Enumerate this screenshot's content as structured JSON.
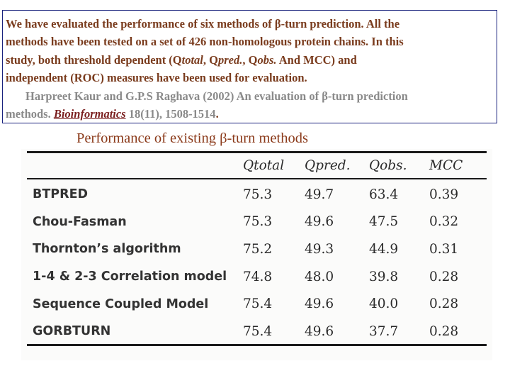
{
  "summary": {
    "line1": "We have evaluated the performance of six methods of β-turn prediction. All the",
    "line2": "methods have been tested on a set of 426 non-homologous protein chains. In this",
    "line3_a": "study, both threshold dependent (Q",
    "line3_b": "total",
    "line3_c": ", Q",
    "line3_d": "pred.",
    "line3_e": ", Q",
    "line3_f": "obs.",
    "line3_g": " And MCC) and",
    "line4": "independent (ROC) measures have been used for evaluation."
  },
  "citation": {
    "line1": "Harpreet Kaur and  G.P.S Raghava (2002) An evaluation of β-turn prediction",
    "prefix": "methods. ",
    "journal": "Bioinformatics",
    "suffix": " 18(11), 1508-1514",
    "period": "."
  },
  "caption": "Performance of existing β-turn methods",
  "table": {
    "headers": [
      "",
      "Qtotal",
      "Qpred.",
      "Qobs.",
      "MCC"
    ],
    "rows": [
      [
        "BTPRED",
        "75.3",
        "49.7",
        "63.4",
        "0.39"
      ],
      [
        "Chou-Fasman",
        "75.3",
        "49.6",
        "47.5",
        "0.32"
      ],
      [
        "Thornton’s algorithm",
        "75.2",
        "49.3",
        "44.9",
        "0.31"
      ],
      [
        "1-4 & 2-3 Correlation model",
        "74.8",
        "48.0",
        "39.8",
        "0.28"
      ],
      [
        "Sequence Coupled Model",
        "75.4",
        "49.6",
        "40.0",
        "0.28"
      ],
      [
        "GORBTURN",
        "75.4",
        "49.6",
        "37.7",
        "0.28"
      ]
    ]
  }
}
